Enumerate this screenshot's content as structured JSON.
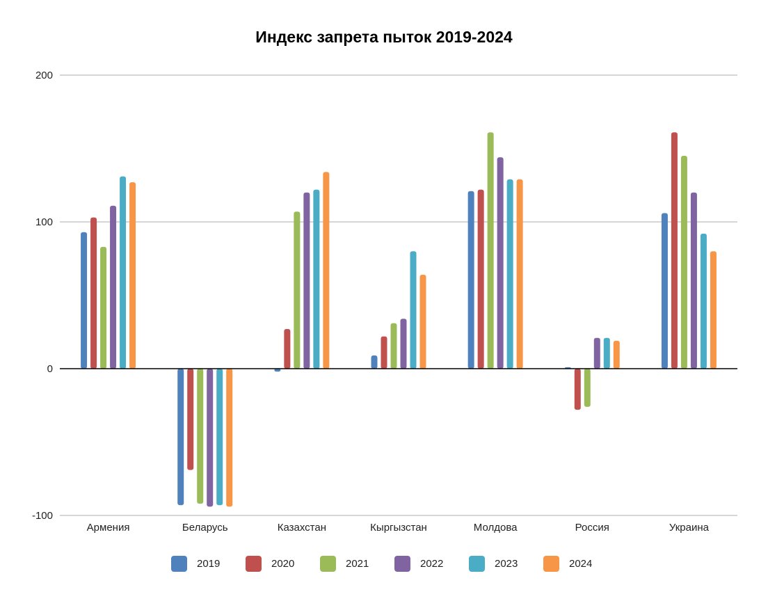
{
  "chart_data": {
    "type": "bar",
    "title": "Индекс запрета пыток 2019-2024",
    "xlabel": "",
    "ylabel": "",
    "ylim": [
      -100,
      200
    ],
    "yticks": [
      -100,
      0,
      100,
      200
    ],
    "grid": true,
    "legend_position": "bottom",
    "categories": [
      "Армения",
      "Беларусь",
      "Казахстан",
      "Кыргызстан",
      "Молдова",
      "Россия",
      "Украина"
    ],
    "series": [
      {
        "name": "2019",
        "color": "#4f81bd",
        "values": [
          93,
          -93,
          -2,
          9,
          121,
          1,
          106
        ]
      },
      {
        "name": "2020",
        "color": "#c0504d",
        "values": [
          103,
          -69,
          27,
          22,
          122,
          -28,
          161
        ]
      },
      {
        "name": "2021",
        "color": "#9bbb59",
        "values": [
          83,
          -92,
          107,
          31,
          161,
          -26,
          145
        ]
      },
      {
        "name": "2022",
        "color": "#8064a2",
        "values": [
          111,
          -94,
          120,
          34,
          144,
          21,
          120
        ]
      },
      {
        "name": "2023",
        "color": "#4bacc6",
        "values": [
          131,
          -93,
          122,
          80,
          129,
          21,
          92
        ]
      },
      {
        "name": "2024",
        "color": "#f79646",
        "values": [
          127,
          -94,
          134,
          64,
          129,
          19,
          80
        ]
      }
    ]
  }
}
